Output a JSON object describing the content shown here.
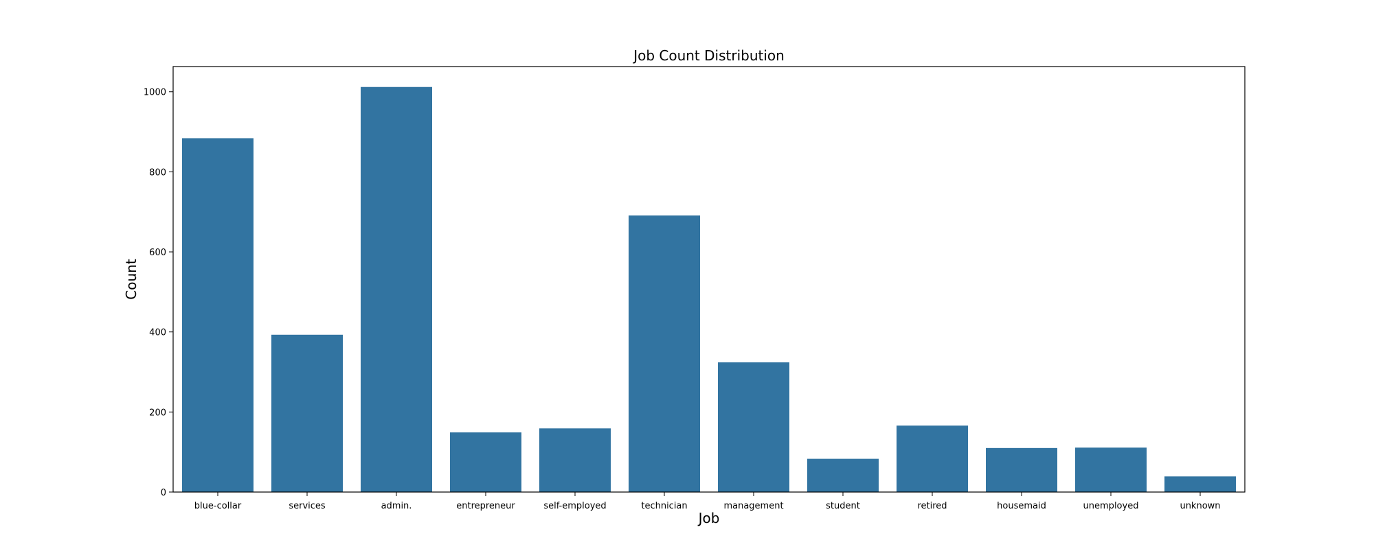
{
  "chart_data": {
    "type": "bar",
    "title": "Job Count Distribution",
    "xlabel": "Job",
    "ylabel": "Count",
    "categories": [
      "blue-collar",
      "services",
      "admin.",
      "entrepreneur",
      "self-employed",
      "technician",
      "management",
      "student",
      "retired",
      "housemaid",
      "unemployed",
      "unknown"
    ],
    "values": [
      884,
      393,
      1012,
      149,
      159,
      691,
      324,
      83,
      166,
      110,
      111,
      39
    ],
    "ylim": [
      0,
      1063
    ],
    "yticks": [
      0,
      200,
      400,
      600,
      800,
      1000
    ],
    "bar_color": "#3274a1",
    "grid": false,
    "legend": "none"
  }
}
